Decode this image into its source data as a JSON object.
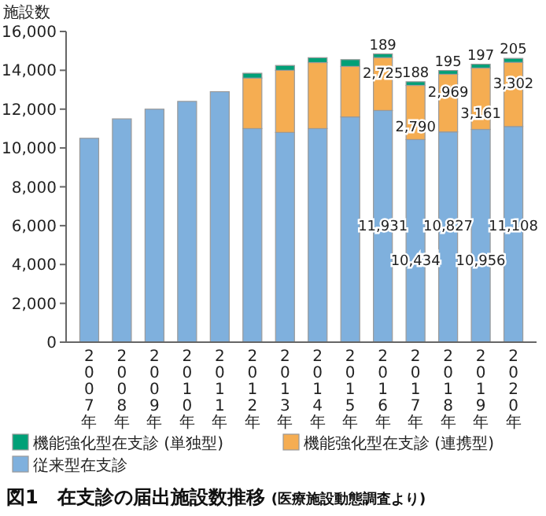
{
  "chart_data": {
    "type": "bar",
    "stacked": true,
    "title": "図1　在支診の届出施設数推移",
    "subtitle": "(医療施設動態調査より)",
    "ylabel": "施設数",
    "categories": [
      "2007年",
      "2008年",
      "2009年",
      "2010年",
      "2011年",
      "2012年",
      "2013年",
      "2014年",
      "2015年",
      "2016年",
      "2017年",
      "2018年",
      "2019年",
      "2020年"
    ],
    "series": [
      {
        "name": "従来型在支診",
        "color": "#7fb0dd",
        "values": [
          10500,
          11500,
          12000,
          12400,
          12900,
          11000,
          10800,
          11000,
          11600,
          11931,
          10434,
          10827,
          10956,
          11108
        ],
        "value_labels": [
          null,
          null,
          null,
          null,
          null,
          null,
          null,
          null,
          null,
          "11,931",
          "10,434",
          "10,827",
          "10,956",
          "11,108"
        ]
      },
      {
        "name": "機能強化型在支診 (連携型)",
        "color": "#f5ad52",
        "values": [
          0,
          0,
          0,
          0,
          0,
          2600,
          3200,
          3400,
          2600,
          2725,
          2790,
          2969,
          3161,
          3302
        ],
        "value_labels": [
          null,
          null,
          null,
          null,
          null,
          null,
          null,
          null,
          null,
          "2,725",
          "2,790",
          "2,969",
          "3,161",
          "3,302"
        ]
      },
      {
        "name": "機能強化型在支診 (単独型)",
        "color": "#00a077",
        "values": [
          0,
          0,
          0,
          0,
          0,
          250,
          250,
          250,
          350,
          189,
          188,
          195,
          197,
          205
        ],
        "value_labels": [
          null,
          null,
          null,
          null,
          null,
          null,
          null,
          null,
          null,
          "189",
          "188",
          "195",
          "197",
          "205"
        ]
      }
    ],
    "ylim": [
      0,
      16000
    ],
    "yticks": [
      {
        "value": 0,
        "label": "0"
      },
      {
        "value": 2000,
        "label": "2,000"
      },
      {
        "value": 4000,
        "label": "4,000"
      },
      {
        "value": 6000,
        "label": "6,000"
      },
      {
        "value": 8000,
        "label": "8,000"
      },
      {
        "value": 10000,
        "label": "10,000"
      },
      {
        "value": 12000,
        "label": "12,000"
      },
      {
        "value": 14000,
        "label": "14,000"
      },
      {
        "value": 16000,
        "label": "16,000"
      }
    ],
    "grid": false,
    "legend": "bottom"
  }
}
